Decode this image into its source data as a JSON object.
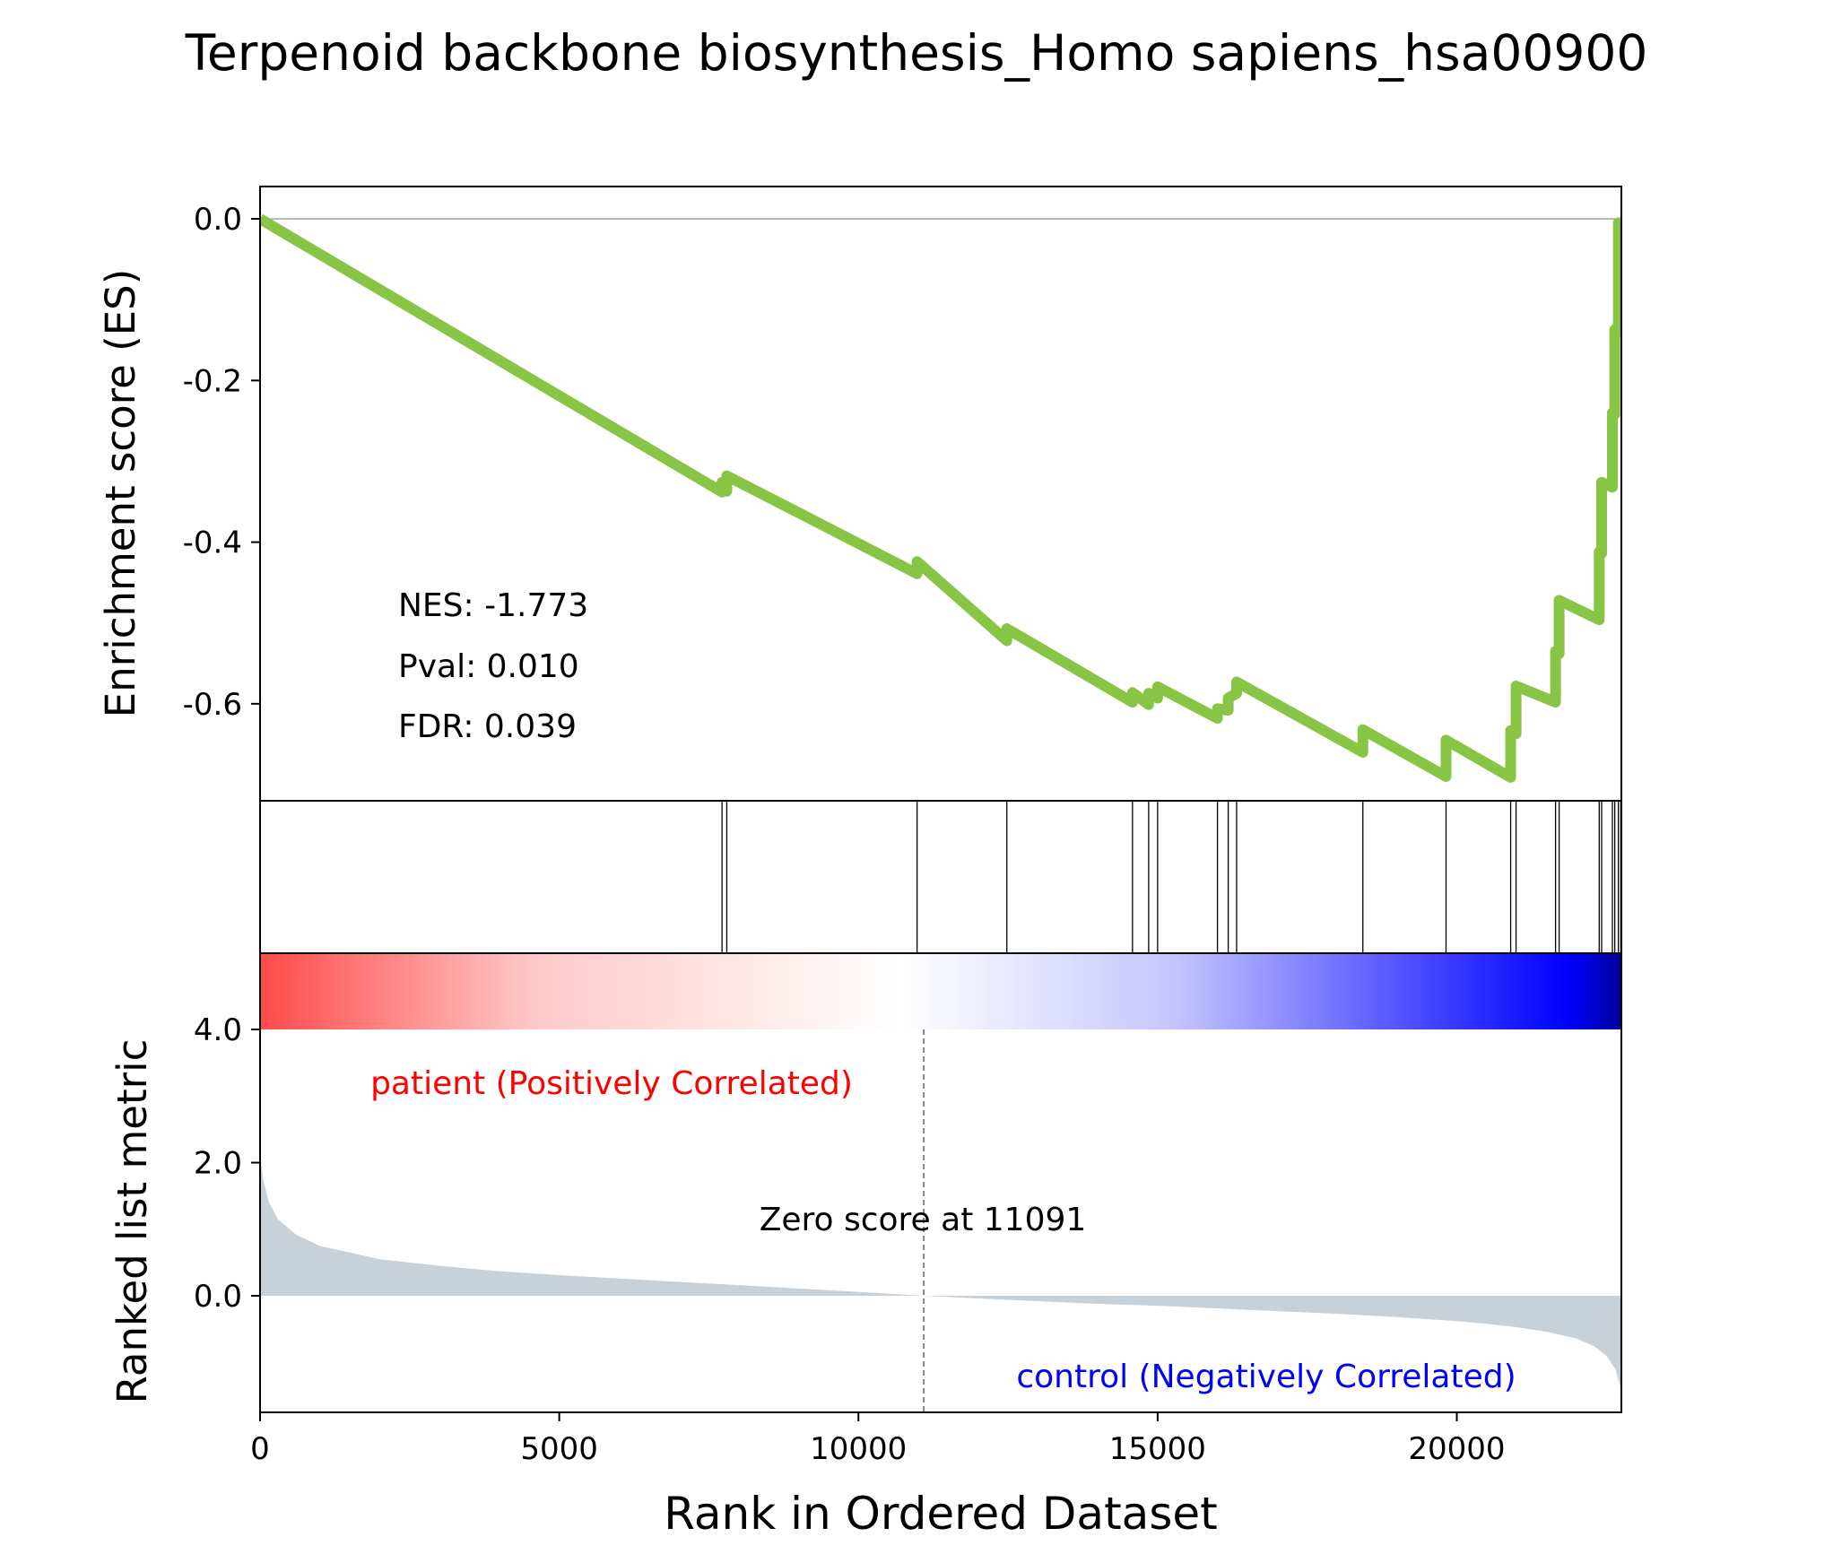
{
  "chart_data": {
    "type": "line",
    "title": "Terpenoid backbone biosynthesis_Homo sapiens_hsa00900",
    "xlabel": "Rank in Ordered Dataset",
    "ylabel_es": "Enrichment score (ES)",
    "ylabel_rank": "Ranked list metric",
    "xlim": [
      0,
      22750
    ],
    "es_ylim": [
      -0.72,
      0.04
    ],
    "rank_ylim": [
      -1.75,
      4.0
    ],
    "x_ticks": [
      0,
      5000,
      10000,
      15000,
      20000
    ],
    "es_ticks": [
      0.0,
      -0.2,
      -0.4,
      -0.6
    ],
    "rank_ticks": [
      4.0,
      2.0,
      0.0
    ],
    "line_color": "#88c544",
    "fill_color": "#c8d1d8",
    "stats": {
      "nes": "NES: -1.773",
      "pval": "Pval: 0.010",
      "fdr": "FDR: 0.039"
    },
    "pos_label": "patient (Positively Correlated)",
    "neg_label": "control (Negatively Correlated)",
    "pos_color": "#ff0000",
    "neg_color": "#0000ff",
    "zero_label": "Zero score at 11091",
    "zero_rank": 11091,
    "hits": [
      7720,
      7800,
      10980,
      12480,
      14580,
      14850,
      15000,
      16000,
      16180,
      16320,
      18430,
      19820,
      20900,
      20990,
      21650,
      21710,
      22380,
      22420,
      22600,
      22640,
      22700,
      22740
    ],
    "es_curve": {
      "x": [
        0,
        7720,
        7720,
        7800,
        7800,
        10980,
        10980,
        12480,
        12480,
        14580,
        14580,
        14850,
        14850,
        15000,
        15000,
        16000,
        16000,
        16180,
        16180,
        16320,
        16320,
        18430,
        18430,
        19820,
        19820,
        20900,
        20900,
        20990,
        20990,
        21650,
        21650,
        21710,
        21710,
        22380,
        22380,
        22420,
        22420,
        22600,
        22600,
        22640,
        22640,
        22700,
        22700,
        22740,
        22740
      ],
      "y": [
        0.0,
        -0.338,
        -0.326,
        -0.337,
        -0.318,
        -0.439,
        -0.424,
        -0.522,
        -0.507,
        -0.598,
        -0.586,
        -0.601,
        -0.587,
        -0.593,
        -0.579,
        -0.618,
        -0.606,
        -0.608,
        -0.593,
        -0.587,
        -0.573,
        -0.66,
        -0.632,
        -0.69,
        -0.645,
        -0.691,
        -0.633,
        -0.637,
        -0.578,
        -0.598,
        -0.535,
        -0.538,
        -0.472,
        -0.496,
        -0.412,
        -0.414,
        -0.326,
        -0.332,
        -0.24,
        -0.242,
        -0.137,
        -0.14,
        -0.005,
        -0.005,
        0.0
      ]
    },
    "rank_metric": {
      "x": [
        0,
        50,
        150,
        300,
        600,
        1000,
        2000,
        3000,
        4000,
        5000,
        6000,
        7000,
        8000,
        9000,
        10000,
        11091,
        12000,
        13000,
        14000,
        15000,
        16000,
        17000,
        18000,
        19000,
        20000,
        20500,
        21000,
        21500,
        22000,
        22300,
        22500,
        22650,
        22750
      ],
      "y": [
        2.15,
        1.75,
        1.4,
        1.15,
        0.92,
        0.75,
        0.55,
        0.45,
        0.37,
        0.31,
        0.26,
        0.21,
        0.16,
        0.11,
        0.06,
        0.0,
        -0.04,
        -0.08,
        -0.12,
        -0.15,
        -0.19,
        -0.23,
        -0.27,
        -0.32,
        -0.38,
        -0.42,
        -0.47,
        -0.54,
        -0.64,
        -0.76,
        -0.9,
        -1.1,
        -1.42
      ]
    },
    "gradient_colors": [
      "#ff4a4a",
      "#ffc8c8",
      "#ffffff",
      "#c6c6ff",
      "#0000ff",
      "#00009c"
    ]
  }
}
